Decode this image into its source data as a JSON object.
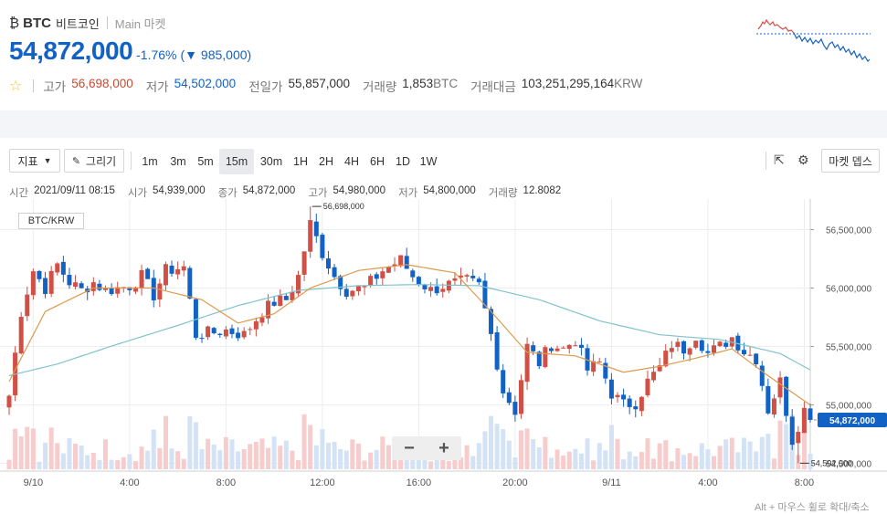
{
  "header": {
    "coin_icon": "bitcoin-icon",
    "symbol": "BTC",
    "name": "비트코인",
    "market_label": "Main 마켓",
    "price": "54,872,000",
    "change_pct": "-1.76%",
    "change_arrow": "▼",
    "change_amount": "985,000",
    "stats": [
      {
        "label": "고가",
        "value": "56,698,000",
        "tone": "red"
      },
      {
        "label": "저가",
        "value": "54,502,000",
        "tone": "blue"
      },
      {
        "label": "전일가",
        "value": "55,857,000",
        "tone": "dark"
      },
      {
        "label": "거래량",
        "value": "1,853",
        "unit": "BTC",
        "tone": "dark"
      },
      {
        "label": "거래대금",
        "value": "103,251,295,164",
        "unit": "KRW",
        "tone": "dark"
      }
    ]
  },
  "toolbar": {
    "indicator_label": "지표",
    "draw_label": "그리기",
    "intervals": [
      "1m",
      "3m",
      "5m",
      "15m",
      "30m",
      "1H",
      "2H",
      "4H",
      "6H",
      "1D",
      "1W"
    ],
    "active_interval": "15m",
    "market_depth_label": "마켓 뎁스",
    "icons": [
      "external-link-icon",
      "gear-icon",
      "pencil-icon",
      "caret-down-icon"
    ]
  },
  "info_bar": [
    {
      "label": "시간",
      "value": "2021/09/11 08:15"
    },
    {
      "label": "시가",
      "value": "54,939,000"
    },
    {
      "label": "종가",
      "value": "54,872,000"
    },
    {
      "label": "고가",
      "value": "54,980,000"
    },
    {
      "label": "저가",
      "value": "54,800,000"
    },
    {
      "label": "거래량",
      "value": "12.8082"
    }
  ],
  "zoom": {
    "minus": "−",
    "plus": "+"
  },
  "hint": "Alt + 마우스 휠로 확대/축소",
  "colors": {
    "up": "#d24f45",
    "down": "#1261c4",
    "ma_short": "#dd9a4e",
    "ma_long": "#80c3cc",
    "accent": "#1261c4"
  },
  "chart_data": {
    "type": "candlestick",
    "pair": "BTC/KRW",
    "interval": "15m",
    "y_ticks": [
      54500000,
      55000000,
      55500000,
      56000000,
      56500000
    ],
    "y_tick_labels": [
      "54,500,000",
      "55,000,000",
      "55,500,000",
      "56,000,000",
      "56,500,000"
    ],
    "ylim": [
      54450000,
      56730000
    ],
    "x_tick_labels": [
      "9/10",
      "4:00",
      "8:00",
      "12:00",
      "16:00",
      "20:00",
      "9/11",
      "4:00",
      "8:00"
    ],
    "x_tick_index": [
      4,
      20,
      36,
      52,
      68,
      84,
      100,
      116,
      132
    ],
    "x_count": 134,
    "annotations": {
      "high": {
        "value": 56698000,
        "label": "56,698,000",
        "index": 50
      },
      "low": {
        "value": 54502000,
        "label": "54,502,000",
        "index": 131
      },
      "current": {
        "value": 54872000,
        "label": "54,872,000"
      }
    },
    "close_anchors": [
      [
        0,
        55080000
      ],
      [
        2,
        55800000
      ],
      [
        4,
        56150000
      ],
      [
        6,
        56000000
      ],
      [
        8,
        56200000
      ],
      [
        10,
        56050000
      ],
      [
        12,
        55980000
      ],
      [
        14,
        56050000
      ],
      [
        16,
        55980000
      ],
      [
        20,
        56020000
      ],
      [
        22,
        56100000
      ],
      [
        24,
        55940000
      ],
      [
        26,
        56150000
      ],
      [
        29,
        56180000
      ],
      [
        31,
        55600000
      ],
      [
        34,
        55620000
      ],
      [
        36,
        55640000
      ],
      [
        39,
        55600000
      ],
      [
        42,
        55800000
      ],
      [
        44,
        55880000
      ],
      [
        46,
        55900000
      ],
      [
        48,
        56100000
      ],
      [
        50,
        56550000
      ],
      [
        52,
        56300000
      ],
      [
        54,
        56100000
      ],
      [
        56,
        55980000
      ],
      [
        59,
        56000000
      ],
      [
        62,
        56150000
      ],
      [
        65,
        56240000
      ],
      [
        67,
        56100000
      ],
      [
        70,
        55980000
      ],
      [
        72,
        56020000
      ],
      [
        74,
        56040000
      ],
      [
        76,
        56060000
      ],
      [
        78,
        56020000
      ],
      [
        80,
        55600000
      ],
      [
        82,
        55120000
      ],
      [
        84,
        54950000
      ],
      [
        86,
        55500000
      ],
      [
        88,
        55360000
      ],
      [
        90,
        55520000
      ],
      [
        92,
        55480000
      ],
      [
        94,
        55560000
      ],
      [
        96,
        55300000
      ],
      [
        98,
        55360000
      ],
      [
        100,
        55100000
      ],
      [
        102,
        55000000
      ],
      [
        104,
        55020000
      ],
      [
        106,
        55200000
      ],
      [
        108,
        55320000
      ],
      [
        110,
        55520000
      ],
      [
        112,
        55480000
      ],
      [
        114,
        55600000
      ],
      [
        116,
        55440000
      ],
      [
        118,
        55500000
      ],
      [
        120,
        55580000
      ],
      [
        122,
        55460000
      ],
      [
        124,
        55400000
      ],
      [
        126,
        54960000
      ],
      [
        128,
        55200000
      ],
      [
        130,
        54700000
      ],
      [
        132,
        54960000
      ],
      [
        133,
        54872000
      ]
    ],
    "ma_short_anchors": [
      [
        0,
        55200000
      ],
      [
        6,
        55800000
      ],
      [
        14,
        56000000
      ],
      [
        24,
        56000000
      ],
      [
        32,
        55900000
      ],
      [
        38,
        55700000
      ],
      [
        44,
        55780000
      ],
      [
        50,
        56000000
      ],
      [
        58,
        56150000
      ],
      [
        66,
        56200000
      ],
      [
        74,
        56130000
      ],
      [
        80,
        55800000
      ],
      [
        86,
        55450000
      ],
      [
        94,
        55420000
      ],
      [
        102,
        55280000
      ],
      [
        108,
        55330000
      ],
      [
        114,
        55400000
      ],
      [
        120,
        55480000
      ],
      [
        126,
        55250000
      ],
      [
        133,
        55000000
      ]
    ],
    "ma_long_anchors": [
      [
        0,
        55250000
      ],
      [
        8,
        55350000
      ],
      [
        18,
        55520000
      ],
      [
        28,
        55680000
      ],
      [
        38,
        55850000
      ],
      [
        48,
        55980000
      ],
      [
        58,
        56020000
      ],
      [
        68,
        56030000
      ],
      [
        78,
        56020000
      ],
      [
        88,
        55900000
      ],
      [
        98,
        55720000
      ],
      [
        108,
        55600000
      ],
      [
        118,
        55560000
      ],
      [
        128,
        55440000
      ],
      [
        133,
        55300000
      ]
    ]
  }
}
